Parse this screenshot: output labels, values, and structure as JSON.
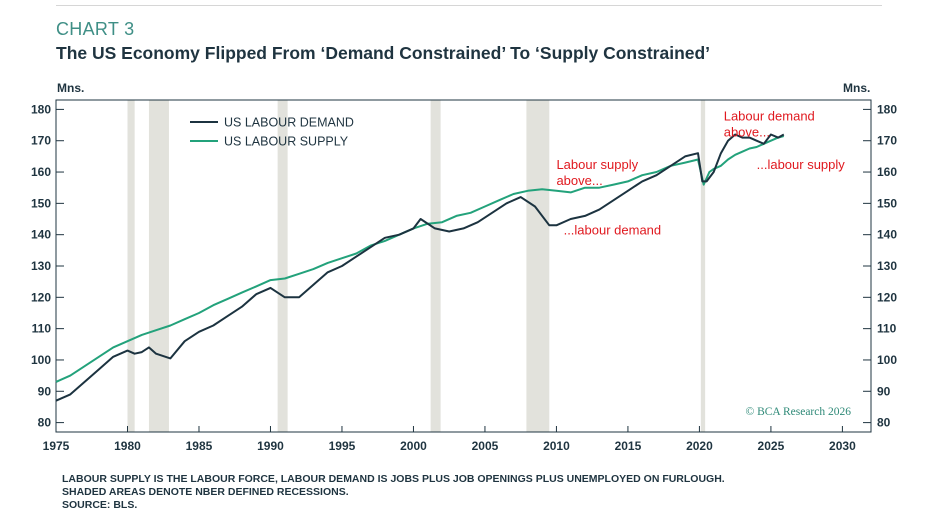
{
  "header": {
    "chart_number": "CHART 3",
    "title": "The US Economy Flipped From ‘Demand Constrained’ To ‘Supply Constrained’"
  },
  "footnotes": [
    "LABOUR SUPPLY IS THE LABOUR FORCE, LABOUR DEMAND IS JOBS PLUS JOB OPENINGS PLUS UNEMPLOYED ON FURLOUGH.",
    "SHADED AREAS DENOTE NBER DEFINED RECESSIONS.",
    "SOURCE: BLS."
  ],
  "colors": {
    "demand": "#1c3340",
    "supply": "#23a27b",
    "annotation": "#e0191f",
    "recession": "#e2e2dc",
    "text": "#1f3440"
  },
  "chart_data": {
    "type": "line",
    "title": "The US Economy Flipped From ‘Demand Constrained’ To ‘Supply Constrained’",
    "ylabel_left": "Mns.",
    "ylabel_right": "Mns.",
    "xlim": [
      1975,
      2032
    ],
    "ylim": [
      77,
      183
    ],
    "x_ticks": [
      1975,
      1980,
      1985,
      1990,
      1995,
      2000,
      2005,
      2010,
      2015,
      2020,
      2025,
      2030
    ],
    "y_ticks": [
      80,
      90,
      100,
      110,
      120,
      130,
      140,
      150,
      160,
      170,
      180
    ],
    "grid": false,
    "legend_position": "top-left",
    "recessions": [
      [
        1980.0,
        1980.5
      ],
      [
        1981.5,
        1982.9
      ],
      [
        1990.5,
        1991.2
      ],
      [
        2001.2,
        2001.9
      ],
      [
        2007.9,
        2009.5
      ],
      [
        2020.1,
        2020.4
      ]
    ],
    "series": [
      {
        "name": "US LABOUR DEMAND",
        "color": "#1c3340",
        "points": [
          [
            1975.0,
            87
          ],
          [
            1976.0,
            89
          ],
          [
            1977.0,
            93
          ],
          [
            1978.0,
            97
          ],
          [
            1979.0,
            101
          ],
          [
            1980.0,
            103
          ],
          [
            1980.5,
            102
          ],
          [
            1981.0,
            102.5
          ],
          [
            1981.5,
            104
          ],
          [
            1982.0,
            102
          ],
          [
            1983.0,
            100.5
          ],
          [
            1984.0,
            106
          ],
          [
            1985.0,
            109
          ],
          [
            1986.0,
            111
          ],
          [
            1987.0,
            114
          ],
          [
            1988.0,
            117
          ],
          [
            1989.0,
            121
          ],
          [
            1990.0,
            123
          ],
          [
            1991.0,
            120
          ],
          [
            1992.0,
            120
          ],
          [
            1993.0,
            124
          ],
          [
            1994.0,
            128
          ],
          [
            1995.0,
            130
          ],
          [
            1996.0,
            133
          ],
          [
            1997.0,
            136
          ],
          [
            1998.0,
            139
          ],
          [
            1999.0,
            140
          ],
          [
            2000.0,
            142
          ],
          [
            2000.5,
            145
          ],
          [
            2001.5,
            142
          ],
          [
            2002.5,
            141
          ],
          [
            2003.5,
            142
          ],
          [
            2004.5,
            144
          ],
          [
            2005.5,
            147
          ],
          [
            2006.5,
            150
          ],
          [
            2007.5,
            152
          ],
          [
            2008.5,
            149
          ],
          [
            2009.5,
            143
          ],
          [
            2010.0,
            143
          ],
          [
            2011.0,
            145
          ],
          [
            2012.0,
            146
          ],
          [
            2013.0,
            148
          ],
          [
            2014.0,
            151
          ],
          [
            2015.0,
            154
          ],
          [
            2016.0,
            157
          ],
          [
            2017.0,
            159
          ],
          [
            2018.0,
            162
          ],
          [
            2019.0,
            165
          ],
          [
            2019.9,
            166
          ],
          [
            2020.2,
            157
          ],
          [
            2020.5,
            157
          ],
          [
            2021.0,
            160
          ],
          [
            2021.5,
            166
          ],
          [
            2022.0,
            170
          ],
          [
            2022.5,
            172
          ],
          [
            2023.0,
            171
          ],
          [
            2023.5,
            171
          ],
          [
            2024.0,
            170
          ],
          [
            2024.5,
            169
          ],
          [
            2025.0,
            172
          ],
          [
            2025.5,
            171
          ],
          [
            2025.9,
            172
          ]
        ]
      },
      {
        "name": "US LABOUR SUPPLY",
        "color": "#23a27b",
        "points": [
          [
            1975.0,
            93
          ],
          [
            1976.0,
            95
          ],
          [
            1977.0,
            98
          ],
          [
            1978.0,
            101
          ],
          [
            1979.0,
            104
          ],
          [
            1980.0,
            106
          ],
          [
            1981.0,
            108
          ],
          [
            1982.0,
            109.5
          ],
          [
            1983.0,
            111
          ],
          [
            1984.0,
            113
          ],
          [
            1985.0,
            115
          ],
          [
            1986.0,
            117.5
          ],
          [
            1987.0,
            119.5
          ],
          [
            1988.0,
            121.5
          ],
          [
            1989.0,
            123.5
          ],
          [
            1990.0,
            125.5
          ],
          [
            1991.0,
            126
          ],
          [
            1992.0,
            127.5
          ],
          [
            1993.0,
            129
          ],
          [
            1994.0,
            131
          ],
          [
            1995.0,
            132.5
          ],
          [
            1996.0,
            134
          ],
          [
            1997.0,
            136.5
          ],
          [
            1998.0,
            138
          ],
          [
            1999.0,
            140
          ],
          [
            2000.0,
            142
          ],
          [
            2001.0,
            143.5
          ],
          [
            2002.0,
            144
          ],
          [
            2003.0,
            146
          ],
          [
            2004.0,
            147
          ],
          [
            2005.0,
            149
          ],
          [
            2006.0,
            151
          ],
          [
            2007.0,
            153
          ],
          [
            2008.0,
            154
          ],
          [
            2009.0,
            154.5
          ],
          [
            2010.0,
            154
          ],
          [
            2011.0,
            153.5
          ],
          [
            2012.0,
            155
          ],
          [
            2013.0,
            155
          ],
          [
            2014.0,
            156
          ],
          [
            2015.0,
            157
          ],
          [
            2016.0,
            159
          ],
          [
            2017.0,
            160
          ],
          [
            2018.0,
            162
          ],
          [
            2019.0,
            163
          ],
          [
            2019.9,
            164
          ],
          [
            2020.3,
            156
          ],
          [
            2020.7,
            160
          ],
          [
            2021.0,
            161
          ],
          [
            2021.5,
            162
          ],
          [
            2022.0,
            164
          ],
          [
            2022.5,
            165.5
          ],
          [
            2023.0,
            166.5
          ],
          [
            2023.5,
            167.5
          ],
          [
            2024.0,
            168
          ],
          [
            2024.5,
            169
          ],
          [
            2025.0,
            170
          ],
          [
            2025.5,
            171
          ],
          [
            2025.9,
            171.5
          ]
        ]
      }
    ],
    "annotations": [
      {
        "text": [
          "Labour supply",
          "above..."
        ],
        "x": 2010.0,
        "y": 161
      },
      {
        "text": [
          "...labour demand"
        ],
        "x": 2010.5,
        "y": 140
      },
      {
        "text": [
          "Labour demand",
          "above..."
        ],
        "x": 2021.7,
        "y": 176.5
      },
      {
        "text": [
          "...labour supply"
        ],
        "x": 2024.0,
        "y": 161
      }
    ],
    "watermark": "© BCA Research 2026"
  }
}
